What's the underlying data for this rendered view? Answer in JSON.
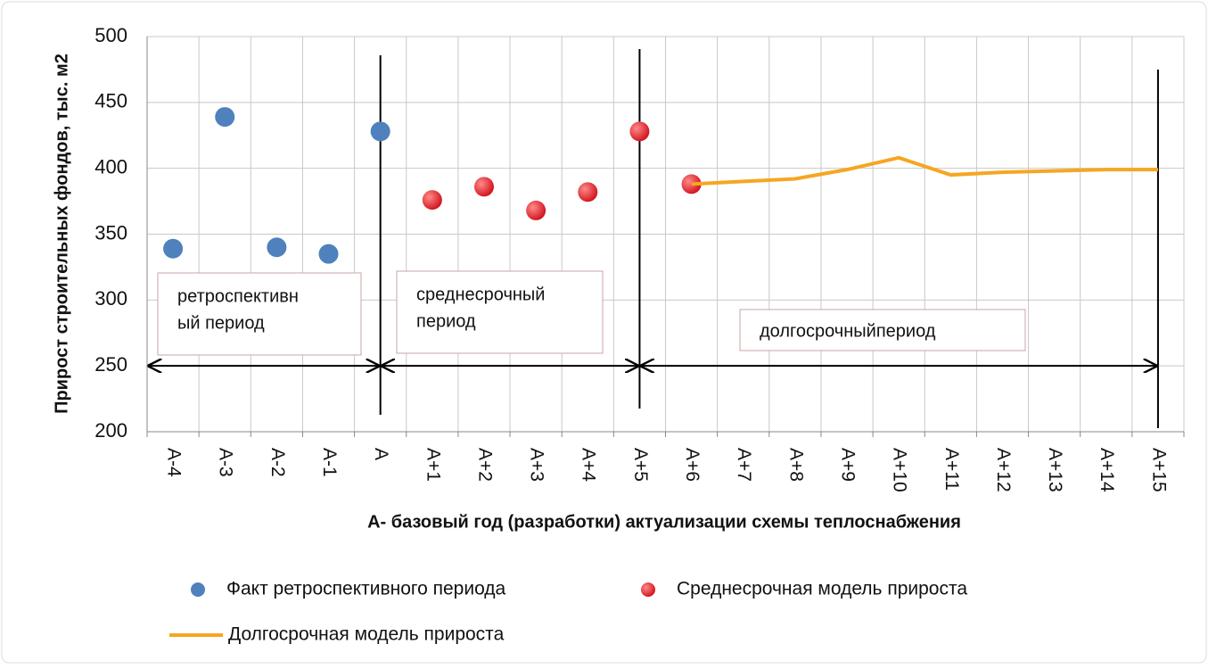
{
  "chart_data": {
    "type": "line",
    "y_label": "Прирост строительных фондов, тыс. м2",
    "x_label": "А- базовый год (разработки) актуализации схемы теплоснабжения",
    "categories": [
      "А-4",
      "А-3",
      "А-2",
      "А-1",
      "А",
      "А+1",
      "А+2",
      "А+3",
      "А+4",
      "А+5",
      "А+6",
      "А+7",
      "А+8",
      "А+9",
      "А+10",
      "А+11",
      "А+12",
      "А+13",
      "А+14",
      "А+15"
    ],
    "series": [
      {
        "name": "Факт ретроспективного периода",
        "kind": "scatter",
        "color": "#4f81bd",
        "values": [
          339,
          439,
          340,
          335,
          428,
          null,
          null,
          null,
          null,
          null,
          null,
          null,
          null,
          null,
          null,
          null,
          null,
          null,
          null,
          null
        ]
      },
      {
        "name": "Среднесрочная модель прироста",
        "kind": "scatter",
        "color": "#e3262e",
        "values": [
          null,
          null,
          null,
          null,
          null,
          376,
          386,
          368,
          382,
          428,
          388,
          null,
          null,
          null,
          null,
          null,
          null,
          null,
          null,
          null
        ]
      },
      {
        "name": "Долгосрочная модель прироста",
        "kind": "line",
        "color": "#f5a623",
        "values": [
          null,
          null,
          null,
          null,
          null,
          null,
          null,
          null,
          null,
          null,
          388,
          390,
          392,
          399,
          408,
          395,
          397,
          398,
          399,
          399
        ]
      }
    ],
    "annotations": [
      [
        "ретроспективн",
        "ый период"
      ],
      [
        "среднесрочный",
        "период"
      ],
      [
        "долгосрочныйпериод"
      ]
    ],
    "ylim": [
      200,
      500
    ],
    "yticks": [
      200,
      250,
      300,
      350,
      400,
      450,
      500
    ],
    "grid": true
  }
}
